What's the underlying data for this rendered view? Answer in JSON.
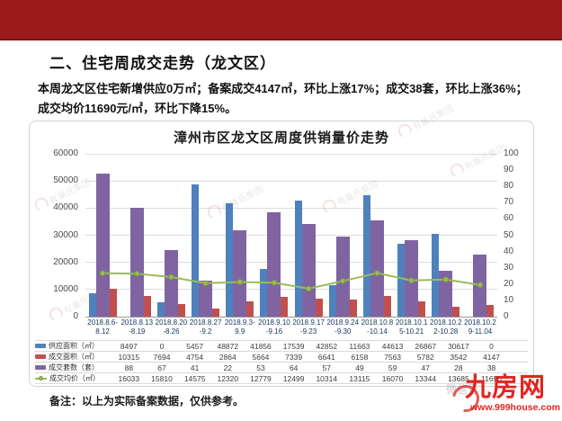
{
  "section": {
    "title": "二、住宅周成交走势（龙文区）",
    "summary_line1": "本周龙文区住宅新增供应0万㎡；备案成交4147㎡，环比上涨17%；成交38套，环比上涨36%；",
    "summary_line2": "成交均价11690元/㎡，环比下降15%。"
  },
  "chart_data": {
    "type": "bar",
    "title": "漳州市区龙文区周度供销量价走势",
    "categories": [
      "2018.8.6-8.12",
      "2018.8.13-8.19",
      "2018.8.20-8.26",
      "2018.8.27-9.2",
      "2018.9.3-9.9",
      "2018.9.10-9.16",
      "2018.9.17-9.23",
      "2018.9.24-9.30",
      "2018.10.8-10.14",
      "2018.10.15-10.21",
      "2018.10.22-10.28",
      "2018.10.29-11.04"
    ],
    "left_axis": {
      "min": 0,
      "max": 60000,
      "step": 10000
    },
    "right_axis": {
      "min": 0,
      "max": 100,
      "step": 10
    },
    "grid": "horizontal",
    "legend_position": "table-left",
    "series": [
      {
        "name": "供应面积（㎡）",
        "type": "bar",
        "axis": "left",
        "color": "#4e81bd",
        "values": [
          8497,
          0,
          5457,
          48872,
          41856,
          17539,
          42852,
          11663,
          44613,
          26867,
          30617,
          0
        ]
      },
      {
        "name": "成交面积（㎡）",
        "type": "bar",
        "axis": "left",
        "color": "#c0504d",
        "values": [
          10315,
          7694,
          4754,
          2864,
          5664,
          7339,
          6641,
          6158,
          7563,
          5782,
          3542,
          4147
        ]
      },
      {
        "name": "成交套数（套）",
        "type": "bar",
        "axis": "right",
        "color": "#8064a2",
        "values": [
          88,
          67,
          41,
          22,
          53,
          64,
          57,
          49,
          59,
          47,
          28,
          38
        ]
      },
      {
        "name": "成交均价（㎡）",
        "type": "line",
        "axis": "left",
        "color": "#9bbb59",
        "values": [
          16033,
          15810,
          14575,
          12320,
          12779,
          12499,
          10314,
          13115,
          16070,
          13344,
          13685,
          11690
        ]
      }
    ]
  },
  "note": "备注：以上为实际备案数据，仅供参考。",
  "watermark": {
    "stamp_text": "有巢氏集团",
    "wechat": "微信号",
    "brand": "九房网",
    "url": "www.999house.com",
    "brand_color": "#e0251f"
  }
}
